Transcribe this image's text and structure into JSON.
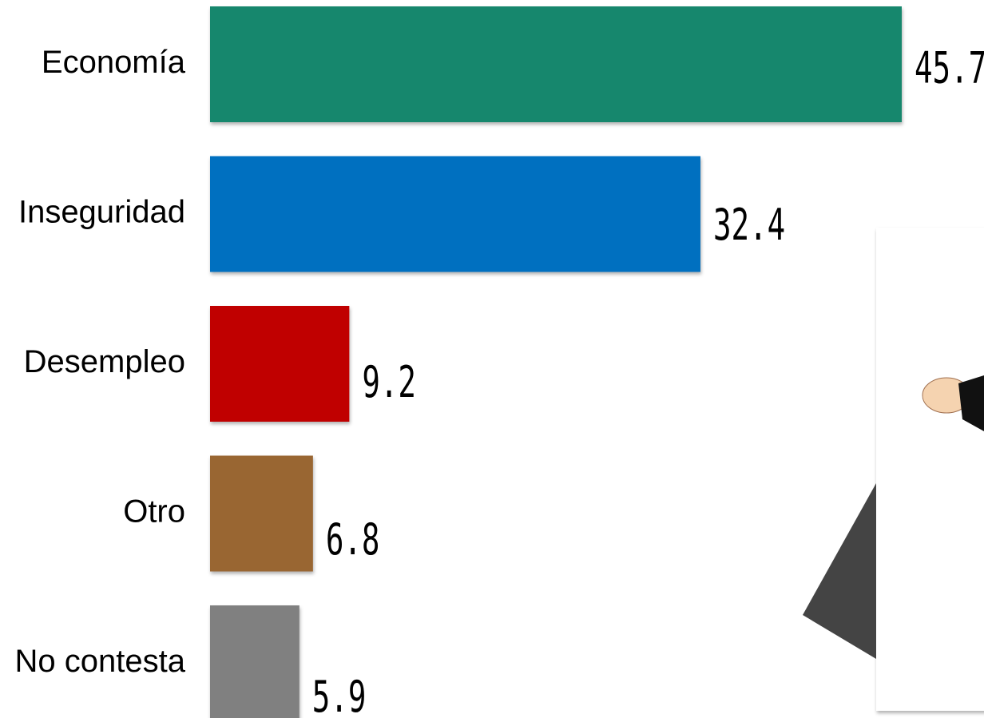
{
  "chart_data": {
    "type": "bar",
    "orientation": "horizontal",
    "categories": [
      "Economía",
      "Inseguridad",
      "Desempleo",
      "Otro",
      "No contesta"
    ],
    "values": [
      45.7,
      32.4,
      9.2,
      6.8,
      5.9
    ],
    "colors": [
      "#17876d",
      "#0070c0",
      "#c00000",
      "#996633",
      "#808080"
    ]
  }
}
